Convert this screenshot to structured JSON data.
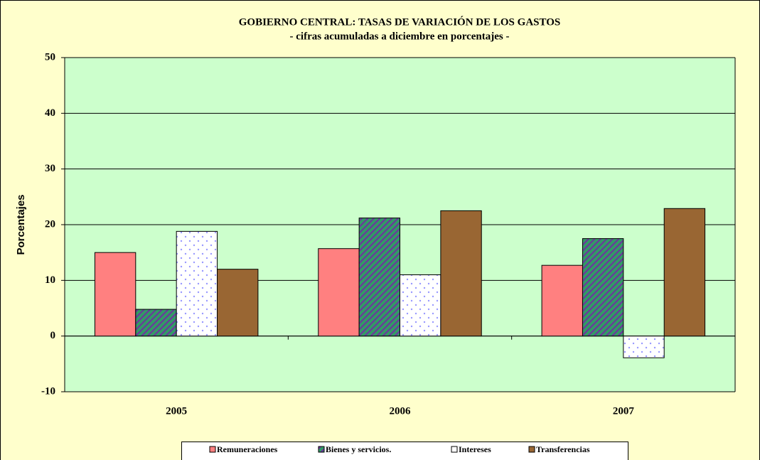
{
  "chart_data": {
    "type": "bar",
    "title": "GOBIERNO CENTRAL: TASAS DE VARIACIÓN DE LOS GASTOS",
    "subtitle": "- cifras acumuladas a diciembre en porcentajes -",
    "y_label": "Porcentajes",
    "categories": [
      "2005",
      "2006",
      "2007"
    ],
    "series": [
      {
        "name": "Remuneraciones",
        "color": "#FF8080",
        "values": [
          15.0,
          15.7,
          12.7
        ]
      },
      {
        "name": "Bienes y servicios.",
        "color": "#339966",
        "values": [
          4.8,
          21.2,
          17.5
        ]
      },
      {
        "name": "Intereses",
        "color": "#FFFFFF",
        "values": [
          18.8,
          11.0,
          -3.9
        ]
      },
      {
        "name": "Transferencias",
        "color": "#996633",
        "values": [
          12.0,
          22.5,
          22.9
        ]
      }
    ],
    "ylim": [
      -10,
      50
    ],
    "yticks": [
      -10,
      0,
      10,
      20,
      30,
      40,
      50
    ],
    "grid": true,
    "legend": "bottom"
  }
}
